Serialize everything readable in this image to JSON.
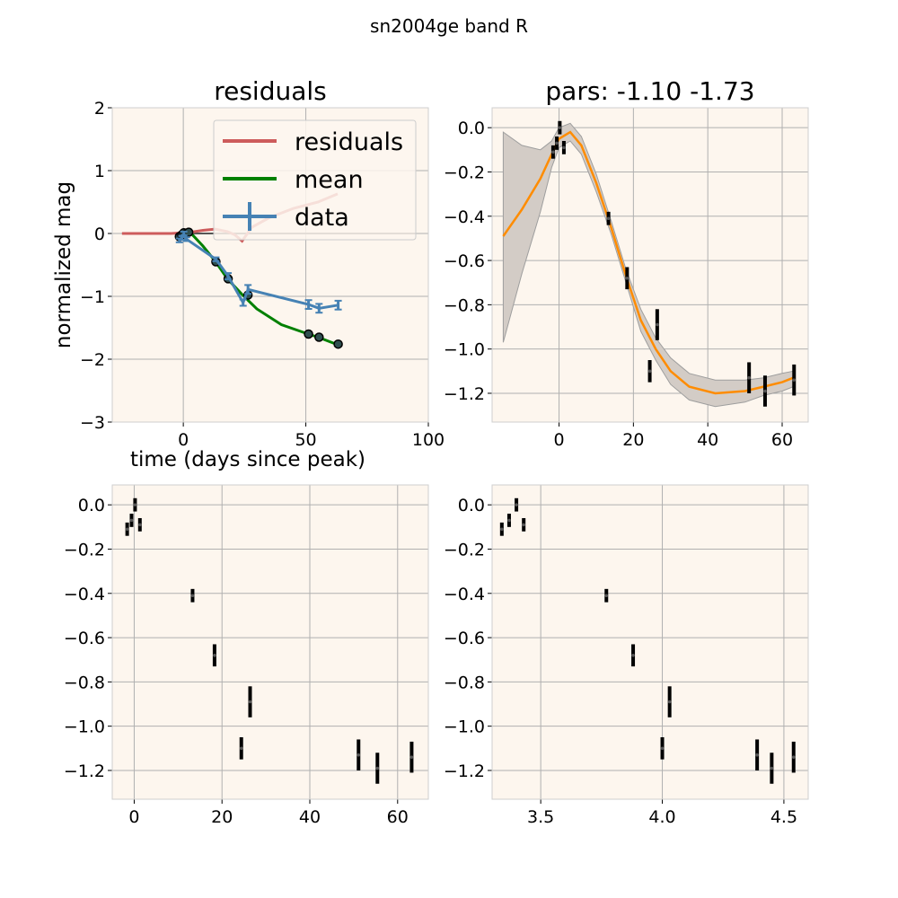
{
  "figure_title": "sn2004ge band R",
  "colors": {
    "background": "#fdf6ee",
    "grid": "#b0b0b0",
    "residuals": "#cd5c5c",
    "mean": "#008000",
    "data": "#4682b4",
    "model_line": "#ff8c00",
    "band_fill": "#d3ccc6",
    "band_edge": "#9e9e9e",
    "errorbar": "#000000"
  },
  "chart_data": [
    {
      "type": "line",
      "title": "residuals",
      "xlabel": "time (days since peak)",
      "ylabel": "normalized mag",
      "xlim": [
        -29,
        100
      ],
      "ylim": [
        -3,
        2
      ],
      "xticks": [
        0,
        50,
        100
      ],
      "yticks": [
        -3,
        -2,
        -1,
        0,
        1,
        2
      ],
      "grid": true,
      "legend_position": "top-right",
      "legend": [
        "residuals",
        "mean",
        "data"
      ],
      "series": [
        {
          "name": "residuals",
          "x": [
            -25,
            -15,
            -5,
            0,
            3,
            8,
            13,
            18,
            21,
            24,
            28,
            35,
            45,
            55,
            63
          ],
          "y": [
            0,
            0,
            0,
            0.01,
            0.02,
            0.05,
            0.07,
            0.03,
            -0.02,
            -0.12,
            0.1,
            0.25,
            0.4,
            0.5,
            0.63
          ]
        },
        {
          "name": "mean",
          "x": [
            -2,
            0,
            3,
            8,
            13,
            18,
            24,
            30,
            40,
            51,
            55,
            63
          ],
          "y": [
            -0.02,
            0.02,
            0.01,
            -0.2,
            -0.44,
            -0.72,
            -0.97,
            -1.2,
            -1.45,
            -1.6,
            -1.65,
            -1.77
          ]
        },
        {
          "name": "data",
          "x": [
            -1.6,
            -0.6,
            0.2,
            1.3,
            13.3,
            18.3,
            24.4,
            26.4,
            51.1,
            55.4,
            63.2
          ],
          "y": [
            -0.11,
            -0.07,
            0.0,
            -0.09,
            -0.41,
            -0.68,
            -1.1,
            -0.89,
            -1.13,
            -1.19,
            -1.14
          ],
          "yerr": [
            0.03,
            0.03,
            0.03,
            0.03,
            0.03,
            0.05,
            0.05,
            0.07,
            0.07,
            0.07,
            0.07
          ]
        },
        {
          "name": "",
          "x": [
            -25,
            95
          ],
          "y": [
            0,
            0
          ]
        }
      ],
      "markers": {
        "x": [
          -1.6,
          -0.6,
          0.2,
          1.3,
          2.2,
          13.3,
          18.3,
          26.4,
          51.1,
          55.4,
          63.2
        ],
        "y": [
          -0.05,
          -0.02,
          0.01,
          0.0,
          0.02,
          -0.45,
          -0.72,
          -0.98,
          -1.6,
          -1.65,
          -1.76
        ]
      }
    },
    {
      "type": "line",
      "title": "pars: -1.10 -1.73",
      "xlim": [
        -18,
        67
      ],
      "ylim": [
        -1.33,
        0.09
      ],
      "xticks": [
        0,
        20,
        40,
        60
      ],
      "yticks": [
        0.0,
        -0.2,
        -0.4,
        -0.6,
        -0.8,
        -1.0,
        -1.2
      ],
      "grid": true,
      "series": [
        {
          "name": "",
          "x": [
            -15,
            -10,
            -5,
            -2,
            0,
            3,
            6,
            10,
            14,
            18,
            22,
            26,
            30,
            35,
            42,
            50,
            55,
            60,
            63
          ],
          "y": [
            -0.49,
            -0.37,
            -0.23,
            -0.12,
            -0.05,
            -0.02,
            -0.08,
            -0.25,
            -0.45,
            -0.67,
            -0.87,
            -1.0,
            -1.1,
            -1.17,
            -1.2,
            -1.19,
            -1.17,
            -1.15,
            -1.13
          ],
          "lower": [
            -0.97,
            -0.66,
            -0.38,
            -0.18,
            -0.09,
            -0.06,
            -0.12,
            -0.29,
            -0.48,
            -0.7,
            -0.92,
            -1.05,
            -1.16,
            -1.23,
            -1.26,
            -1.24,
            -1.21,
            -1.19,
            -1.17
          ],
          "upper": [
            -0.02,
            -0.08,
            -0.1,
            -0.06,
            0.0,
            0.02,
            -0.04,
            -0.21,
            -0.42,
            -0.64,
            -0.82,
            -0.95,
            -1.04,
            -1.11,
            -1.14,
            -1.14,
            -1.13,
            -1.11,
            -1.1
          ]
        },
        {
          "name": "",
          "x": [
            -1.6,
            -0.6,
            0.2,
            1.3,
            13.3,
            18.3,
            24.4,
            26.4,
            51.1,
            55.4,
            63.2
          ],
          "y": [
            -0.11,
            -0.07,
            0.0,
            -0.09,
            -0.41,
            -0.68,
            -1.1,
            -0.89,
            -1.13,
            -1.19,
            -1.14
          ],
          "yerr": [
            0.03,
            0.03,
            0.03,
            0.03,
            0.03,
            0.05,
            0.05,
            0.07,
            0.07,
            0.07,
            0.07
          ]
        }
      ]
    },
    {
      "type": "scatter",
      "title": "",
      "xlim": [
        -5,
        67
      ],
      "ylim": [
        -1.33,
        0.09
      ],
      "xticks": [
        0,
        20,
        40,
        60
      ],
      "yticks": [
        0.0,
        -0.2,
        -0.4,
        -0.6,
        -0.8,
        -1.0,
        -1.2
      ],
      "grid": true,
      "series": [
        {
          "name": "",
          "x": [
            -1.6,
            -0.6,
            0.2,
            1.3,
            13.3,
            18.3,
            24.4,
            26.4,
            51.1,
            55.4,
            63.2
          ],
          "y": [
            -0.11,
            -0.07,
            0.0,
            -0.09,
            -0.41,
            -0.68,
            -1.1,
            -0.89,
            -1.13,
            -1.19,
            -1.14
          ],
          "yerr": [
            0.03,
            0.03,
            0.03,
            0.03,
            0.03,
            0.05,
            0.05,
            0.07,
            0.07,
            0.07,
            0.07
          ]
        }
      ]
    },
    {
      "type": "scatter",
      "title": "",
      "xlim": [
        3.3,
        4.6
      ],
      "ylim": [
        -1.33,
        0.09
      ],
      "xticks": [
        3.5,
        4.0,
        4.5
      ],
      "xtick_labels": [
        "3.5",
        "4.0",
        "4.5"
      ],
      "yticks": [
        0.0,
        -0.2,
        -0.4,
        -0.6,
        -0.8,
        -1.0,
        -1.2
      ],
      "grid": true,
      "series": [
        {
          "name": "",
          "x": [
            3.34,
            3.37,
            3.4,
            3.43,
            3.77,
            3.88,
            4.0,
            4.03,
            4.39,
            4.45,
            4.54
          ],
          "y": [
            -0.11,
            -0.07,
            0.0,
            -0.09,
            -0.41,
            -0.68,
            -1.1,
            -0.89,
            -1.13,
            -1.19,
            -1.14
          ],
          "yerr": [
            0.03,
            0.03,
            0.03,
            0.03,
            0.03,
            0.05,
            0.05,
            0.07,
            0.07,
            0.07,
            0.07
          ]
        }
      ]
    }
  ]
}
